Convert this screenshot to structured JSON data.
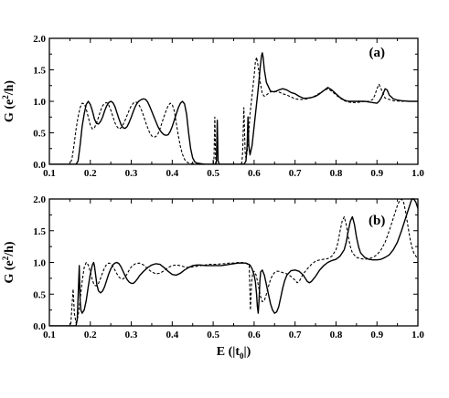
{
  "chart_data": [
    {
      "type": "line",
      "panel_label": "(a)",
      "ylabel_main": "G (e",
      "ylabel_sup": "2",
      "ylabel_end": "/h)",
      "xlabel": "",
      "xlim": [
        0.1,
        1.0
      ],
      "ylim": [
        0.0,
        2.0
      ],
      "xticks": [
        "0.1",
        "0.2",
        "0.3",
        "0.4",
        "0.5",
        "0.6",
        "0.7",
        "0.8",
        "0.9",
        "1.0"
      ],
      "yticks": [
        "0.0",
        "0.5",
        "1.0",
        "1.5",
        "2.0"
      ],
      "series": [
        {
          "style": "solid",
          "x": [
            0.1,
            0.165,
            0.17,
            0.175,
            0.18,
            0.185,
            0.19,
            0.195,
            0.2,
            0.205,
            0.21,
            0.215,
            0.22,
            0.225,
            0.23,
            0.235,
            0.24,
            0.245,
            0.25,
            0.255,
            0.26,
            0.265,
            0.27,
            0.275,
            0.28,
            0.285,
            0.29,
            0.295,
            0.3,
            0.305,
            0.31,
            0.315,
            0.32,
            0.325,
            0.33,
            0.335,
            0.34,
            0.345,
            0.35,
            0.355,
            0.36,
            0.365,
            0.37,
            0.375,
            0.38,
            0.385,
            0.39,
            0.395,
            0.4,
            0.405,
            0.41,
            0.415,
            0.42,
            0.425,
            0.43,
            0.435,
            0.44,
            0.445,
            0.45,
            0.455,
            0.46,
            0.47,
            0.48,
            0.49,
            0.5,
            0.505,
            0.508,
            0.51,
            0.512,
            0.515,
            0.518,
            0.52,
            0.522,
            0.525,
            0.54,
            0.56,
            0.575,
            0.58,
            0.583,
            0.585,
            0.587,
            0.59,
            0.595,
            0.6,
            0.605,
            0.61,
            0.615,
            0.618,
            0.62,
            0.622,
            0.625,
            0.63,
            0.64,
            0.65,
            0.66,
            0.67,
            0.68,
            0.69,
            0.7,
            0.71,
            0.72,
            0.73,
            0.74,
            0.75,
            0.76,
            0.77,
            0.78,
            0.79,
            0.8,
            0.81,
            0.82,
            0.83,
            0.84,
            0.85,
            0.86,
            0.87,
            0.88,
            0.89,
            0.9,
            0.905,
            0.91,
            0.915,
            0.92,
            0.925,
            0.93,
            0.94,
            0.95,
            0.96,
            0.98,
            1.0
          ],
          "y": [
            0.0,
            0.0,
            0.05,
            0.3,
            0.6,
            0.8,
            0.95,
            1.0,
            0.95,
            0.85,
            0.72,
            0.65,
            0.64,
            0.68,
            0.75,
            0.85,
            0.93,
            0.98,
            1.0,
            0.98,
            0.92,
            0.82,
            0.72,
            0.63,
            0.58,
            0.57,
            0.6,
            0.67,
            0.75,
            0.84,
            0.92,
            0.98,
            1.01,
            1.03,
            1.04,
            1.03,
            0.99,
            0.92,
            0.84,
            0.76,
            0.68,
            0.6,
            0.54,
            0.5,
            0.47,
            0.46,
            0.47,
            0.52,
            0.6,
            0.7,
            0.8,
            0.9,
            0.97,
            1.0,
            0.96,
            0.8,
            0.5,
            0.25,
            0.1,
            0.04,
            0.02,
            0.01,
            0.0,
            0.0,
            0.0,
            0.0,
            0.05,
            0.7,
            0.05,
            0.0,
            0.0,
            0.0,
            0.0,
            0.0,
            0.0,
            0.0,
            0.0,
            0.05,
            0.3,
            0.75,
            0.3,
            0.15,
            0.3,
            0.6,
            0.9,
            1.2,
            1.55,
            1.72,
            1.77,
            1.7,
            1.5,
            1.3,
            1.16,
            1.15,
            1.18,
            1.2,
            1.18,
            1.14,
            1.12,
            1.08,
            1.05,
            1.05,
            1.06,
            1.08,
            1.12,
            1.17,
            1.22,
            1.18,
            1.12,
            1.06,
            1.02,
            1.0,
            1.0,
            1.0,
            1.0,
            1.0,
            0.99,
            0.98,
            0.97,
            1.0,
            1.05,
            1.12,
            1.2,
            1.18,
            1.1,
            1.04,
            1.02,
            1.01,
            1.0,
            1.0
          ]
        },
        {
          "style": "dashed",
          "x": [
            0.1,
            0.15,
            0.155,
            0.16,
            0.165,
            0.17,
            0.175,
            0.18,
            0.185,
            0.19,
            0.195,
            0.2,
            0.205,
            0.21,
            0.215,
            0.22,
            0.225,
            0.23,
            0.235,
            0.24,
            0.245,
            0.25,
            0.255,
            0.26,
            0.265,
            0.27,
            0.275,
            0.28,
            0.285,
            0.29,
            0.295,
            0.3,
            0.305,
            0.31,
            0.315,
            0.32,
            0.325,
            0.33,
            0.335,
            0.34,
            0.345,
            0.35,
            0.355,
            0.36,
            0.365,
            0.37,
            0.375,
            0.38,
            0.385,
            0.39,
            0.395,
            0.4,
            0.405,
            0.41,
            0.415,
            0.42,
            0.425,
            0.43,
            0.435,
            0.44,
            0.45,
            0.46,
            0.47,
            0.48,
            0.49,
            0.5,
            0.502,
            0.504,
            0.506,
            0.508,
            0.51,
            0.53,
            0.55,
            0.565,
            0.57,
            0.572,
            0.575,
            0.578,
            0.58,
            0.583,
            0.587,
            0.59,
            0.595,
            0.6,
            0.603,
            0.606,
            0.61,
            0.615,
            0.62,
            0.625,
            0.63,
            0.64,
            0.65,
            0.66,
            0.67,
            0.68,
            0.69,
            0.7,
            0.71,
            0.72,
            0.73,
            0.74,
            0.75,
            0.76,
            0.77,
            0.78,
            0.79,
            0.8,
            0.81,
            0.82,
            0.83,
            0.84,
            0.85,
            0.86,
            0.87,
            0.88,
            0.89,
            0.895,
            0.9,
            0.905,
            0.91,
            0.92,
            0.94,
            0.96,
            0.98,
            1.0
          ],
          "y": [
            0.0,
            0.0,
            0.08,
            0.3,
            0.55,
            0.75,
            0.9,
            0.97,
            0.96,
            0.88,
            0.75,
            0.62,
            0.56,
            0.58,
            0.65,
            0.75,
            0.85,
            0.93,
            0.97,
            0.98,
            0.94,
            0.86,
            0.76,
            0.66,
            0.6,
            0.56,
            0.58,
            0.63,
            0.7,
            0.78,
            0.86,
            0.93,
            0.97,
            0.99,
            0.98,
            0.93,
            0.86,
            0.77,
            0.67,
            0.58,
            0.5,
            0.45,
            0.43,
            0.44,
            0.48,
            0.56,
            0.66,
            0.76,
            0.85,
            0.93,
            0.97,
            0.95,
            0.85,
            0.65,
            0.45,
            0.28,
            0.16,
            0.08,
            0.04,
            0.02,
            0.01,
            0.0,
            0.0,
            0.0,
            0.0,
            0.0,
            0.1,
            0.75,
            0.1,
            0.0,
            0.0,
            0.0,
            0.0,
            0.0,
            0.02,
            0.2,
            0.9,
            0.2,
            0.1,
            0.2,
            0.5,
            0.8,
            1.1,
            1.4,
            1.62,
            1.7,
            1.55,
            1.3,
            1.12,
            1.08,
            1.1,
            1.15,
            1.16,
            1.15,
            1.12,
            1.1,
            1.07,
            1.04,
            1.03,
            1.03,
            1.04,
            1.06,
            1.09,
            1.13,
            1.17,
            1.2,
            1.16,
            1.1,
            1.05,
            1.01,
            0.99,
            0.98,
            0.98,
            0.99,
            1.0,
            1.0,
            1.03,
            1.1,
            1.2,
            1.27,
            1.2,
            1.05,
            1.01,
            1.0,
            1.0,
            1.0
          ]
        }
      ]
    },
    {
      "type": "line",
      "panel_label": "(b)",
      "ylabel_main": "G (e",
      "ylabel_sup": "2",
      "ylabel_end": "/h)",
      "xlabel_main": "E (|t",
      "xlabel_sub": "0",
      "xlabel_end": "|)",
      "xlim": [
        0.1,
        1.0
      ],
      "ylim": [
        0.0,
        2.0
      ],
      "xticks": [
        "0.1",
        "0.2",
        "0.3",
        "0.4",
        "0.5",
        "0.6",
        "0.7",
        "0.8",
        "0.9",
        "1.0"
      ],
      "yticks": [
        "0.0",
        "0.5",
        "1.0",
        "1.5",
        "2.0"
      ],
      "series": [
        {
          "style": "solid",
          "x": [
            0.1,
            0.165,
            0.168,
            0.171,
            0.173,
            0.175,
            0.177,
            0.18,
            0.185,
            0.19,
            0.195,
            0.2,
            0.205,
            0.208,
            0.21,
            0.213,
            0.216,
            0.22,
            0.225,
            0.23,
            0.235,
            0.24,
            0.245,
            0.25,
            0.255,
            0.26,
            0.265,
            0.27,
            0.275,
            0.28,
            0.285,
            0.29,
            0.295,
            0.3,
            0.305,
            0.31,
            0.315,
            0.32,
            0.33,
            0.34,
            0.35,
            0.36,
            0.37,
            0.38,
            0.39,
            0.4,
            0.41,
            0.42,
            0.43,
            0.44,
            0.45,
            0.46,
            0.47,
            0.48,
            0.49,
            0.5,
            0.51,
            0.52,
            0.53,
            0.54,
            0.55,
            0.56,
            0.57,
            0.58,
            0.59,
            0.595,
            0.6,
            0.603,
            0.606,
            0.608,
            0.61,
            0.612,
            0.614,
            0.616,
            0.62,
            0.625,
            0.63,
            0.635,
            0.64,
            0.645,
            0.65,
            0.655,
            0.66,
            0.665,
            0.67,
            0.675,
            0.68,
            0.69,
            0.7,
            0.71,
            0.72,
            0.725,
            0.73,
            0.735,
            0.74,
            0.75,
            0.76,
            0.77,
            0.78,
            0.79,
            0.8,
            0.81,
            0.82,
            0.825,
            0.83,
            0.835,
            0.84,
            0.845,
            0.85,
            0.855,
            0.86,
            0.87,
            0.88,
            0.89,
            0.9,
            0.91,
            0.92,
            0.93,
            0.94,
            0.95,
            0.96,
            0.97,
            0.98,
            0.985,
            0.99,
            0.995,
            1.0
          ],
          "y": [
            0.0,
            0.0,
            0.1,
            0.6,
            0.95,
            0.4,
            0.25,
            0.2,
            0.25,
            0.4,
            0.62,
            0.82,
            0.96,
            1.0,
            0.95,
            0.8,
            0.65,
            0.55,
            0.52,
            0.55,
            0.62,
            0.72,
            0.82,
            0.9,
            0.96,
            0.99,
            1.0,
            0.98,
            0.93,
            0.86,
            0.79,
            0.73,
            0.69,
            0.67,
            0.67,
            0.7,
            0.74,
            0.79,
            0.86,
            0.92,
            0.96,
            0.98,
            0.97,
            0.92,
            0.86,
            0.81,
            0.8,
            0.83,
            0.88,
            0.92,
            0.95,
            0.96,
            0.96,
            0.95,
            0.95,
            0.95,
            0.95,
            0.95,
            0.96,
            0.97,
            0.98,
            0.99,
            0.99,
            0.99,
            0.96,
            0.9,
            0.8,
            0.7,
            0.5,
            0.3,
            0.2,
            0.4,
            0.7,
            0.85,
            0.88,
            0.8,
            0.65,
            0.5,
            0.35,
            0.25,
            0.2,
            0.22,
            0.3,
            0.45,
            0.6,
            0.72,
            0.8,
            0.87,
            0.88,
            0.86,
            0.8,
            0.75,
            0.7,
            0.68,
            0.7,
            0.78,
            0.88,
            0.95,
            1.0,
            1.03,
            1.05,
            1.1,
            1.2,
            1.32,
            1.5,
            1.65,
            1.72,
            1.6,
            1.4,
            1.25,
            1.15,
            1.08,
            1.05,
            1.04,
            1.04,
            1.05,
            1.08,
            1.12,
            1.2,
            1.32,
            1.5,
            1.7,
            1.9,
            2.0,
            2.0,
            1.95,
            1.85
          ]
        },
        {
          "style": "dashed",
          "x": [
            0.1,
            0.152,
            0.155,
            0.158,
            0.161,
            0.165,
            0.17,
            0.175,
            0.18,
            0.185,
            0.19,
            0.195,
            0.2,
            0.205,
            0.21,
            0.215,
            0.22,
            0.225,
            0.23,
            0.235,
            0.24,
            0.245,
            0.25,
            0.255,
            0.26,
            0.265,
            0.27,
            0.275,
            0.28,
            0.285,
            0.29,
            0.295,
            0.3,
            0.31,
            0.32,
            0.33,
            0.34,
            0.35,
            0.36,
            0.37,
            0.38,
            0.39,
            0.4,
            0.41,
            0.42,
            0.43,
            0.44,
            0.45,
            0.46,
            0.47,
            0.48,
            0.49,
            0.5,
            0.51,
            0.52,
            0.53,
            0.54,
            0.55,
            0.56,
            0.57,
            0.58,
            0.588,
            0.591,
            0.594,
            0.597,
            0.6,
            0.605,
            0.61,
            0.615,
            0.62,
            0.625,
            0.63,
            0.635,
            0.64,
            0.645,
            0.65,
            0.655,
            0.66,
            0.665,
            0.67,
            0.68,
            0.69,
            0.7,
            0.705,
            0.71,
            0.715,
            0.72,
            0.73,
            0.74,
            0.75,
            0.76,
            0.77,
            0.78,
            0.79,
            0.8,
            0.805,
            0.81,
            0.815,
            0.82,
            0.825,
            0.83,
            0.835,
            0.84,
            0.85,
            0.86,
            0.87,
            0.88,
            0.89,
            0.9,
            0.91,
            0.92,
            0.93,
            0.94,
            0.95,
            0.955,
            0.96,
            0.965,
            0.97,
            0.975,
            0.98,
            0.985,
            0.99,
            1.0
          ],
          "y": [
            0.0,
            0.0,
            0.3,
            0.58,
            0.2,
            0.05,
            0.15,
            0.4,
            0.7,
            0.92,
            1.0,
            0.96,
            0.85,
            0.72,
            0.64,
            0.63,
            0.67,
            0.75,
            0.84,
            0.92,
            0.97,
            0.99,
            0.98,
            0.94,
            0.88,
            0.82,
            0.77,
            0.74,
            0.74,
            0.77,
            0.82,
            0.88,
            0.93,
            0.98,
            0.99,
            0.96,
            0.9,
            0.85,
            0.82,
            0.83,
            0.87,
            0.92,
            0.95,
            0.96,
            0.95,
            0.93,
            0.92,
            0.93,
            0.94,
            0.95,
            0.96,
            0.97,
            0.97,
            0.97,
            0.98,
            0.98,
            0.99,
            0.99,
            1.0,
            1.0,
            0.99,
            0.95,
            0.25,
            0.7,
            0.85,
            0.86,
            0.8,
            0.65,
            0.48,
            0.38,
            0.4,
            0.5,
            0.62,
            0.73,
            0.8,
            0.84,
            0.86,
            0.86,
            0.85,
            0.84,
            0.82,
            0.78,
            0.72,
            0.68,
            0.7,
            0.76,
            0.82,
            0.9,
            0.97,
            1.02,
            1.04,
            1.05,
            1.06,
            1.1,
            1.2,
            1.32,
            1.5,
            1.65,
            1.72,
            1.6,
            1.4,
            1.25,
            1.15,
            1.08,
            1.06,
            1.05,
            1.06,
            1.08,
            1.12,
            1.2,
            1.32,
            1.5,
            1.7,
            1.9,
            1.97,
            2.0,
            1.95,
            1.8,
            1.6,
            1.4,
            1.25,
            1.15,
            1.05
          ]
        }
      ]
    }
  ]
}
